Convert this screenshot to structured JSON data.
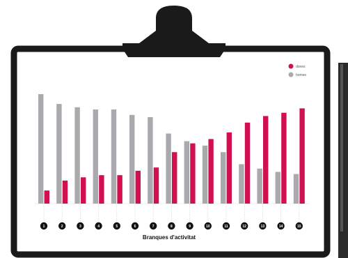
{
  "chart_data": {
    "type": "bar",
    "title": "",
    "xlabel": "Branques d'activitat",
    "ylabel": "",
    "categories": [
      "1",
      "2",
      "3",
      "4",
      "5",
      "6",
      "7",
      "8",
      "9",
      "10",
      "11",
      "12",
      "13",
      "14",
      "15"
    ],
    "series": [
      {
        "name": "homes",
        "color": "#a9a9ae",
        "values": [
          100,
          91,
          88,
          86,
          86,
          81,
          79,
          64,
          57,
          53,
          47,
          36,
          32,
          29,
          27
        ]
      },
      {
        "name": "dones",
        "color": "#d0104f",
        "values": [
          12,
          21,
          24,
          26,
          26,
          30,
          33,
          47,
          55,
          59,
          65,
          74,
          80,
          83,
          87
        ]
      }
    ],
    "ylim": [
      0,
      100
    ],
    "grid": false,
    "legend_position": "top-right"
  }
}
